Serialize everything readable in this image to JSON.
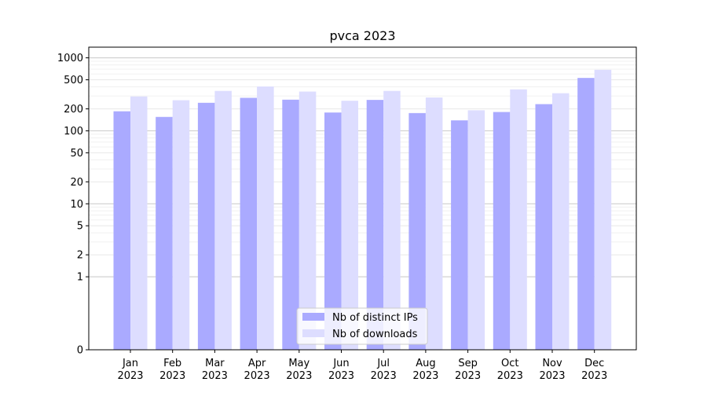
{
  "chart_data": {
    "type": "bar",
    "title": "pvca 2023",
    "xlabel": "",
    "ylabel": "",
    "y_scale": "symlog",
    "ylim": [
      0,
      1400
    ],
    "y_ticks": [
      0,
      1,
      2,
      5,
      10,
      20,
      50,
      100,
      200,
      500,
      1000
    ],
    "y_tick_labels": [
      "0",
      "1",
      "2",
      "5",
      "10",
      "20",
      "50",
      "100",
      "200",
      "500",
      "1000"
    ],
    "grid": true,
    "legend_position": "bottom-center",
    "categories": [
      {
        "month": "Jan",
        "year": "2023"
      },
      {
        "month": "Feb",
        "year": "2023"
      },
      {
        "month": "Mar",
        "year": "2023"
      },
      {
        "month": "Apr",
        "year": "2023"
      },
      {
        "month": "May",
        "year": "2023"
      },
      {
        "month": "Jun",
        "year": "2023"
      },
      {
        "month": "Jul",
        "year": "2023"
      },
      {
        "month": "Aug",
        "year": "2023"
      },
      {
        "month": "Sep",
        "year": "2023"
      },
      {
        "month": "Oct",
        "year": "2023"
      },
      {
        "month": "Nov",
        "year": "2023"
      },
      {
        "month": "Dec",
        "year": "2023"
      }
    ],
    "series": [
      {
        "name": "Nb of distinct IPs",
        "color": "#aaaaff",
        "values": [
          185,
          155,
          242,
          283,
          267,
          178,
          265,
          175,
          139,
          181,
          232,
          530
        ]
      },
      {
        "name": "Nb of downloads",
        "color": "#ddddff",
        "values": [
          295,
          262,
          352,
          405,
          345,
          258,
          352,
          286,
          191,
          370,
          327,
          685
        ]
      }
    ]
  }
}
